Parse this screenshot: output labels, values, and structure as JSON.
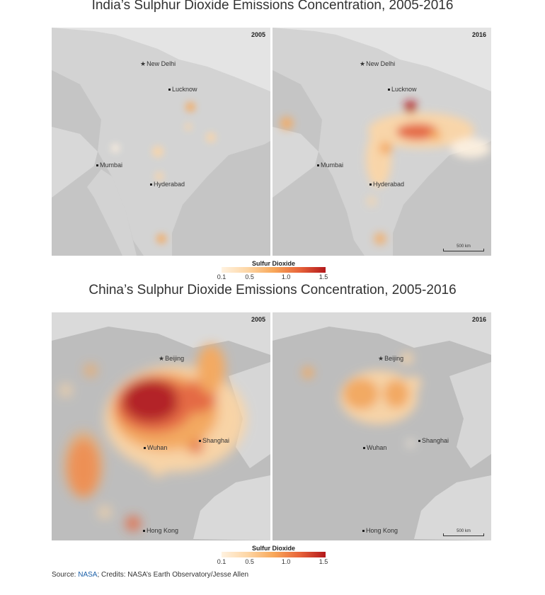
{
  "india": {
    "title": "India’s Sulphur Dioxide Emissions Concentration, 2005-2016",
    "panels": [
      {
        "year": "2005",
        "cities": [
          "New Delhi",
          "Lucknow",
          "Mumbai",
          "Hyderabad"
        ]
      },
      {
        "year": "2016",
        "cities": [
          "New Delhi",
          "Lucknow",
          "Mumbai",
          "Hyderabad"
        ],
        "scale": "500 km"
      }
    ]
  },
  "china": {
    "title": "China’s Sulphur Dioxide Emissions Concentration, 2005-2016",
    "panels": [
      {
        "year": "2005",
        "cities": [
          "Beijing",
          "Wuhan",
          "Shanghai",
          "Hong Kong"
        ]
      },
      {
        "year": "2016",
        "cities": [
          "Beijing",
          "Wuhan",
          "Shanghai",
          "Hong Kong"
        ],
        "scale": "500 km"
      }
    ]
  },
  "legend": {
    "title": "Sulfur Dioxide",
    "ticks": [
      "0.1",
      "0.5",
      "1.0",
      "1.5"
    ],
    "colors": [
      "#fff2e0",
      "#fdd6a5",
      "#f8a85a",
      "#e8643a",
      "#b3181b"
    ]
  },
  "source": {
    "prefix": "Source: ",
    "link": "NASA",
    "suffix": "; Credits: NASA’s Earth Observatory/Jesse Allen"
  }
}
